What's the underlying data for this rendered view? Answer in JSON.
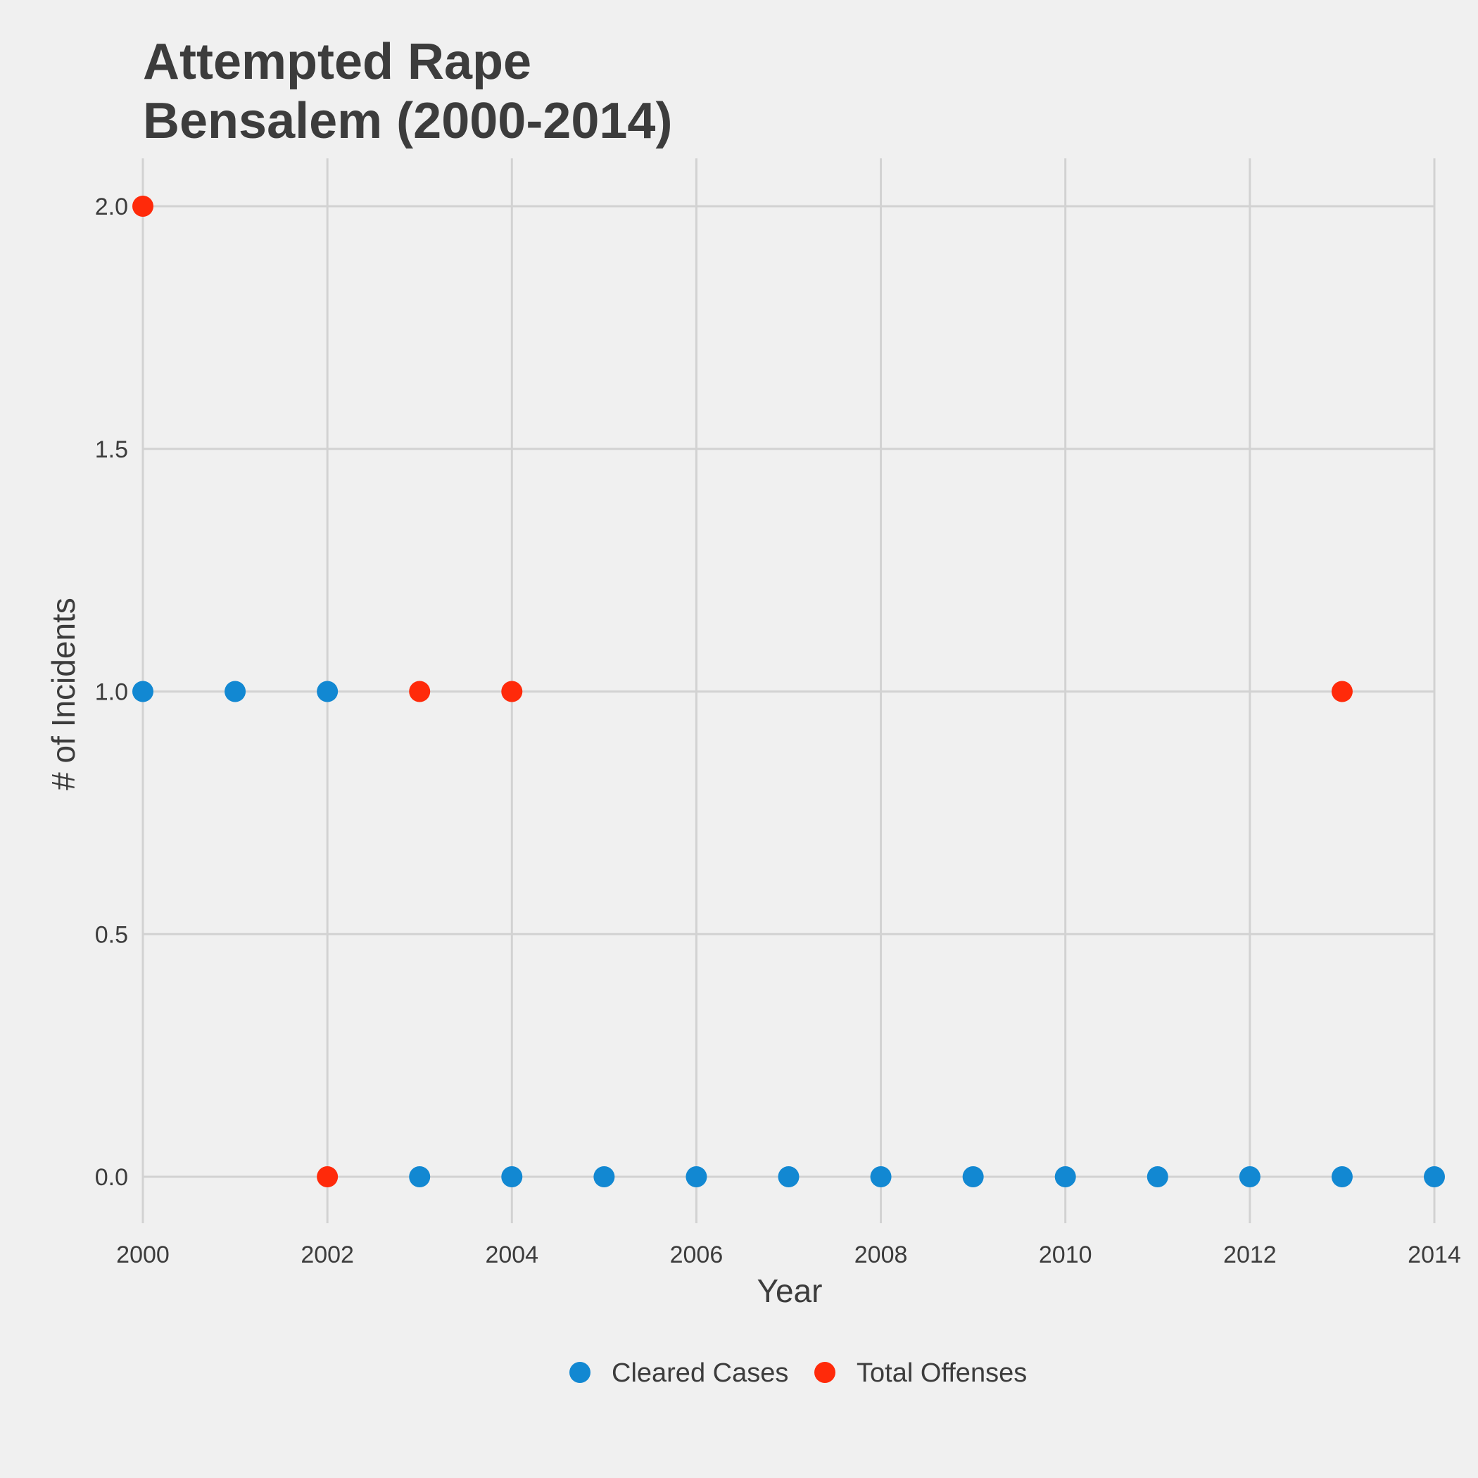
{
  "chart_data": {
    "type": "scatter",
    "title_line1": "Attempted Rape",
    "title_line2": "Bensalem (2000-2014)",
    "xlabel": "Year",
    "ylabel": "# of Incidents",
    "xlim": [
      2000,
      2014
    ],
    "ylim": [
      0,
      2
    ],
    "x_ticks": [
      "2000",
      "2002",
      "2004",
      "2006",
      "2008",
      "2010",
      "2012",
      "2014"
    ],
    "y_ticks": [
      "0.0",
      "0.5",
      "1.0",
      "1.5",
      "2.0"
    ],
    "grid": true,
    "legend_position": "bottom",
    "series": [
      {
        "name": "Cleared Cases",
        "color": "#1288d2",
        "points": [
          [
            2000,
            1
          ],
          [
            2001,
            1
          ],
          [
            2002,
            1
          ],
          [
            2003,
            0
          ],
          [
            2004,
            0
          ],
          [
            2005,
            0
          ],
          [
            2006,
            0
          ],
          [
            2007,
            0
          ],
          [
            2008,
            0
          ],
          [
            2009,
            0
          ],
          [
            2010,
            0
          ],
          [
            2011,
            0
          ],
          [
            2012,
            0
          ],
          [
            2013,
            0
          ],
          [
            2014,
            0
          ]
        ]
      },
      {
        "name": "Total Offenses",
        "color": "#ff2a0a",
        "points": [
          [
            2000,
            2
          ],
          [
            2002,
            0
          ],
          [
            2003,
            1
          ],
          [
            2004,
            1
          ],
          [
            2013,
            1
          ]
        ]
      }
    ]
  }
}
